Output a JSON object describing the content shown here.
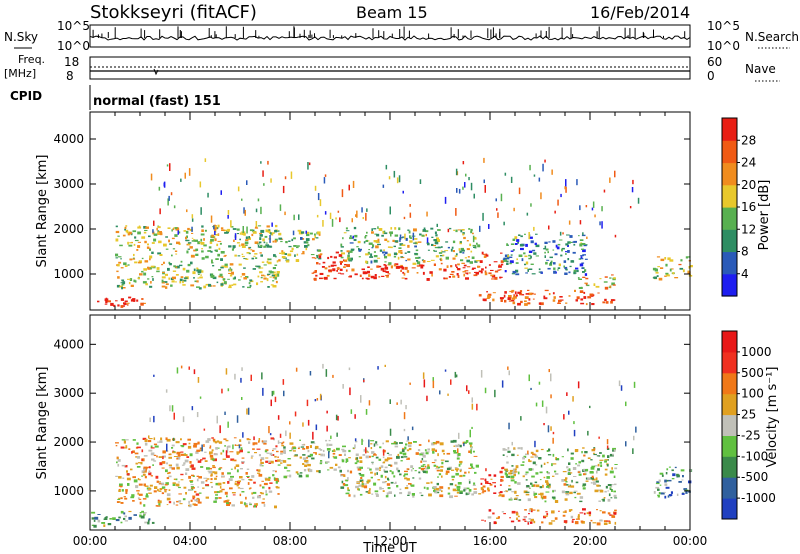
{
  "header": {
    "station": "Stokkseyri (fitACF)",
    "beam": "Beam 15",
    "date": "16/Feb/2014"
  },
  "status_panels": {
    "nsky_label": "N.Sky",
    "nsky_ticks": [
      "10^5",
      "10^0"
    ],
    "nsearch_label": "N.Search",
    "nsearch_ticks": [
      "10^5",
      "10^0"
    ],
    "freq_label_1": "Freq.",
    "freq_label_2": "[MHz]",
    "freq_ticks": [
      "18",
      "8"
    ],
    "nave_label": "Nave",
    "nave_ticks": [
      "60",
      "0"
    ],
    "cpid_label": "CPID",
    "cpid_value": "normal (fast) 151"
  },
  "chart_data": [
    {
      "type": "heatmap",
      "quantity": "power",
      "ylabel": "Slant Range [km]",
      "ylim": [
        200,
        4600
      ],
      "yticks": [
        "1000",
        "2000",
        "3000",
        "4000"
      ],
      "xlim": [
        0,
        24
      ],
      "colorbar": {
        "label": "Power [dB]",
        "range": [
          0,
          32
        ],
        "ticks": [
          "4",
          "8",
          "12",
          "16",
          "20",
          "24",
          "28"
        ],
        "colors": [
          "#1e1ef0",
          "#2a5ab8",
          "#2e8d63",
          "#58b050",
          "#e8c82c",
          "#f08c1e",
          "#f05a14",
          "#e81e14"
        ]
      },
      "bands": [
        {
          "t0": 0.0,
          "t1": 2.5,
          "r0": 300,
          "r1": 500,
          "level": 0.92
        },
        {
          "t0": 1.0,
          "t1": 7.5,
          "r0": 700,
          "r1": 2100,
          "level": 0.5
        },
        {
          "t0": 7.5,
          "t1": 9.2,
          "r0": 1300,
          "r1": 2000,
          "level": 0.45
        },
        {
          "t0": 8.8,
          "t1": 10.2,
          "r0": 900,
          "r1": 1500,
          "level": 0.95
        },
        {
          "t0": 10.0,
          "t1": 15.5,
          "r0": 900,
          "r1": 1250,
          "level": 0.88
        },
        {
          "t0": 10.0,
          "t1": 15.5,
          "r0": 1250,
          "r1": 2050,
          "level": 0.45
        },
        {
          "t0": 15.5,
          "t1": 16.5,
          "r0": 900,
          "r1": 1500,
          "level": 0.95
        },
        {
          "t0": 16.5,
          "t1": 19.8,
          "r0": 1000,
          "r1": 1900,
          "level": 0.3
        },
        {
          "t0": 15.5,
          "t1": 21.0,
          "r0": 350,
          "r1": 650,
          "level": 0.85
        },
        {
          "t0": 19.5,
          "t1": 21.0,
          "r0": 700,
          "r1": 1000,
          "level": 0.6
        },
        {
          "t0": 22.5,
          "t1": 24.0,
          "r0": 900,
          "r1": 1400,
          "level": 0.55
        }
      ]
    },
    {
      "type": "heatmap",
      "quantity": "velocity",
      "ylabel": "Slant Range [km]",
      "xlabel": "Time UT",
      "ylim": [
        200,
        4600
      ],
      "yticks": [
        "1000",
        "2000",
        "3000",
        "4000"
      ],
      "xlim": [
        0,
        24
      ],
      "xticks": [
        "00:00",
        "04:00",
        "08:00",
        "12:00",
        "16:00",
        "20:00",
        "00:00"
      ],
      "colorbar": {
        "label": "Velocity [m s⁻¹]",
        "ticks": [
          "1000",
          "500",
          "100",
          "25",
          "-25",
          "-100",
          "-500",
          "-1000"
        ],
        "colors": [
          "#2040c0",
          "#30609e",
          "#3a8a4a",
          "#60c040",
          "#c0c0b8",
          "#e0a020",
          "#f07818",
          "#f03020",
          "#e81818"
        ]
      },
      "bands": [
        {
          "t0": 0.0,
          "t1": 2.5,
          "r0": 300,
          "r1": 600,
          "level": 0.35
        },
        {
          "t0": 1.0,
          "t1": 7.5,
          "r0": 700,
          "r1": 2100,
          "level": 0.6
        },
        {
          "t0": 7.5,
          "t1": 10.0,
          "r0": 1300,
          "r1": 2050,
          "level": 0.5
        },
        {
          "t0": 10.0,
          "t1": 15.5,
          "r0": 900,
          "r1": 2050,
          "level": 0.5
        },
        {
          "t0": 15.5,
          "t1": 16.5,
          "r0": 900,
          "r1": 1500,
          "level": 0.8
        },
        {
          "t0": 16.5,
          "t1": 21.0,
          "r0": 800,
          "r1": 1900,
          "level": 0.45
        },
        {
          "t0": 15.5,
          "t1": 21.0,
          "r0": 350,
          "r1": 650,
          "level": 0.75
        },
        {
          "t0": 22.5,
          "t1": 24.0,
          "r0": 900,
          "r1": 1500,
          "level": 0.3
        }
      ]
    }
  ]
}
